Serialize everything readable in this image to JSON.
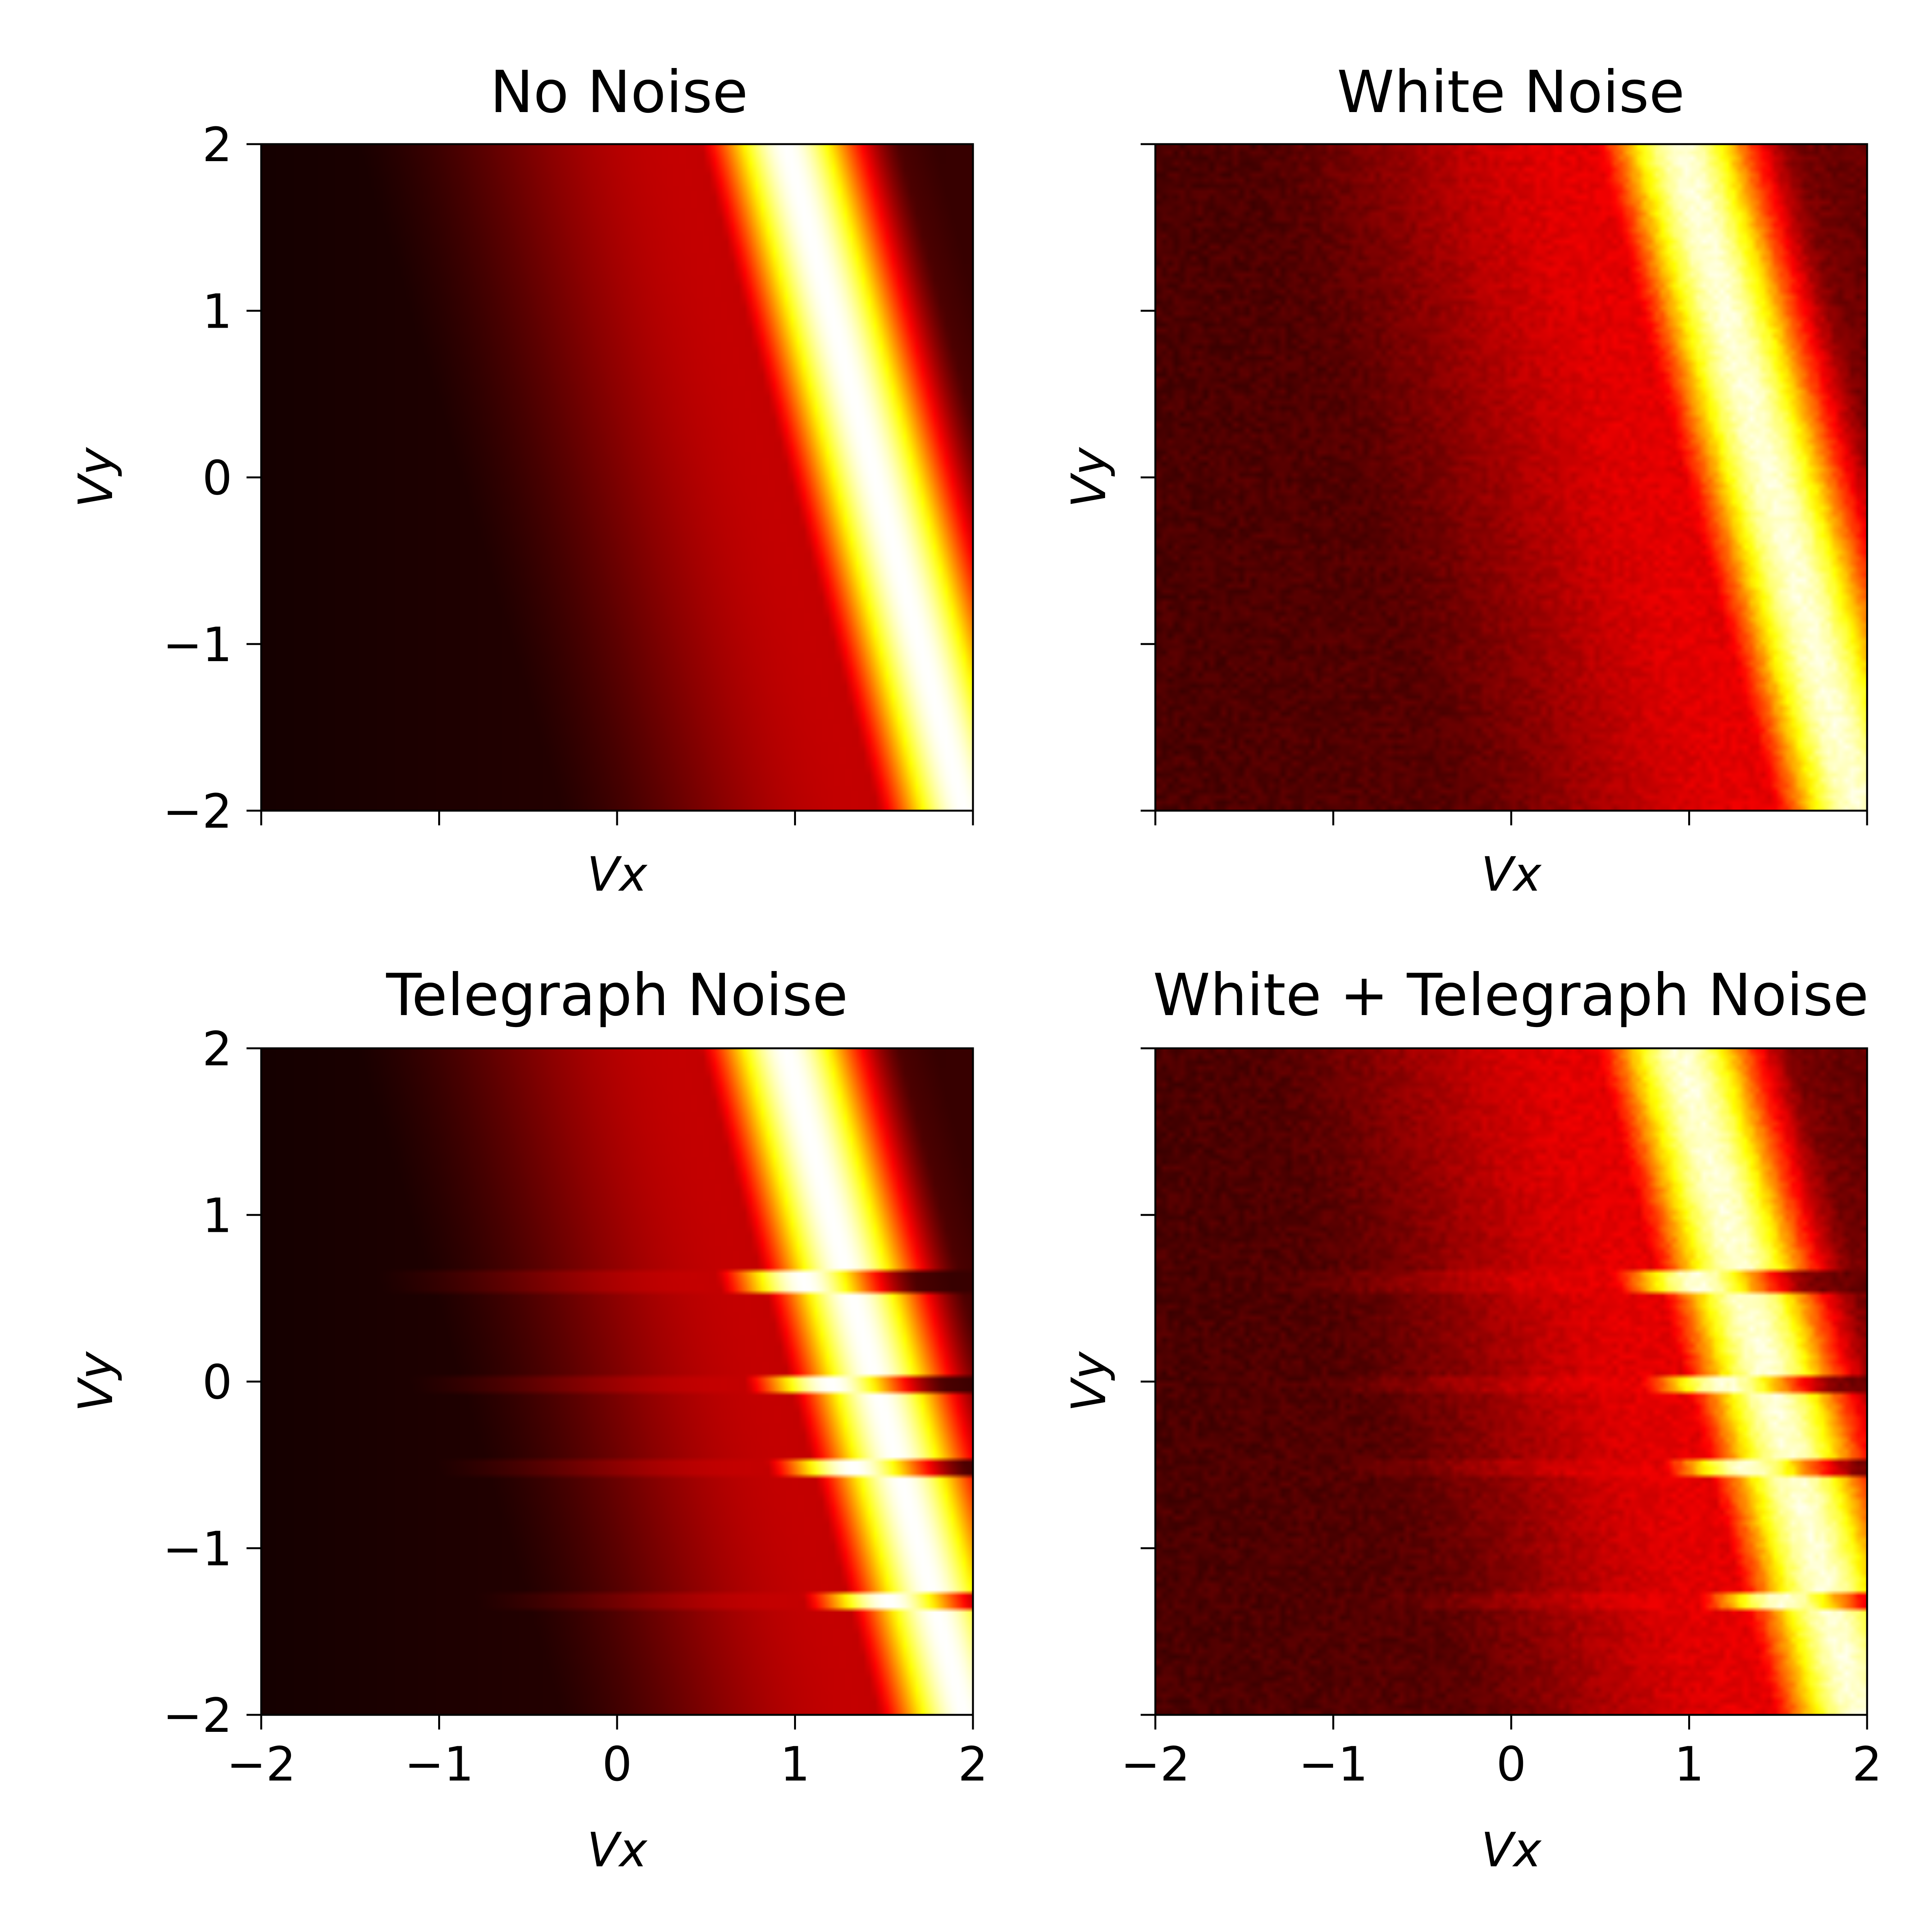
{
  "chart_data": [
    {
      "type": "heatmap",
      "title": "No Noise",
      "xlabel": "Vx",
      "ylabel": "Vy",
      "xlim": [
        -2,
        2
      ],
      "ylim": [
        -2,
        2
      ],
      "xticks": [
        "−2",
        "−1",
        "0",
        "1",
        "2"
      ],
      "yticks": [
        "−2",
        "−1",
        "0",
        "1",
        "2"
      ],
      "show_xtick_labels": false,
      "show_ytick_labels": true,
      "colormap": "hot",
      "grid": false,
      "ridge": {
        "vx_at_vy_top": 0.95,
        "vx_at_vy_bottom": 1.95,
        "width": 0.3
      },
      "white_noise": false,
      "telegraph_noise": false
    },
    {
      "type": "heatmap",
      "title": "White Noise",
      "xlabel": "Vx",
      "ylabel": "Vy",
      "xlim": [
        -2,
        2
      ],
      "ylim": [
        -2,
        2
      ],
      "xticks": [
        "−2",
        "−1",
        "0",
        "1",
        "2"
      ],
      "yticks": [
        "−2",
        "−1",
        "0",
        "1",
        "2"
      ],
      "show_xtick_labels": false,
      "show_ytick_labels": false,
      "colormap": "hot",
      "grid": false,
      "ridge": {
        "vx_at_vy_top": 0.95,
        "vx_at_vy_bottom": 1.95,
        "width": 0.3
      },
      "white_noise": true,
      "telegraph_noise": false
    },
    {
      "type": "heatmap",
      "title": "Telegraph Noise",
      "xlabel": "Vx",
      "ylabel": "Vy",
      "xlim": [
        -2,
        2
      ],
      "ylim": [
        -2,
        2
      ],
      "xticks": [
        "−2",
        "−1",
        "0",
        "1",
        "2"
      ],
      "yticks": [
        "−2",
        "−1",
        "0",
        "1",
        "2"
      ],
      "show_xtick_labels": true,
      "show_ytick_labels": true,
      "colormap": "hot",
      "grid": false,
      "ridge": {
        "vx_at_vy_top": 0.95,
        "vx_at_vy_bottom": 1.95,
        "width": 0.3
      },
      "white_noise": false,
      "telegraph_noise": true,
      "telegraph_bands": [
        {
          "vy_from": 0.52,
          "vy_to": 0.68,
          "vx_shift": 0.25
        },
        {
          "vy_from": -0.05,
          "vy_to": 0.05,
          "vx_shift": 0.25
        },
        {
          "vy_from": -0.56,
          "vy_to": -0.48,
          "vx_shift": 0.25
        },
        {
          "vy_from": -1.38,
          "vy_to": -1.28,
          "vx_shift": 0.25
        }
      ]
    },
    {
      "type": "heatmap",
      "title": "White + Telegraph Noise",
      "xlabel": "Vx",
      "ylabel": "Vy",
      "xlim": [
        -2,
        2
      ],
      "ylim": [
        -2,
        2
      ],
      "xticks": [
        "−2",
        "−1",
        "0",
        "1",
        "2"
      ],
      "yticks": [
        "−2",
        "−1",
        "0",
        "1",
        "2"
      ],
      "show_xtick_labels": true,
      "show_ytick_labels": false,
      "colormap": "hot",
      "grid": false,
      "ridge": {
        "vx_at_vy_top": 0.95,
        "vx_at_vy_bottom": 1.95,
        "width": 0.3
      },
      "white_noise": true,
      "telegraph_noise": true,
      "telegraph_bands": [
        {
          "vy_from": 0.52,
          "vy_to": 0.68,
          "vx_shift": 0.25
        },
        {
          "vy_from": -0.05,
          "vy_to": 0.05,
          "vx_shift": 0.25
        },
        {
          "vy_from": -0.56,
          "vy_to": -0.48,
          "vx_shift": 0.25
        },
        {
          "vy_from": -1.38,
          "vy_to": -1.28,
          "vx_shift": 0.25
        }
      ]
    }
  ]
}
